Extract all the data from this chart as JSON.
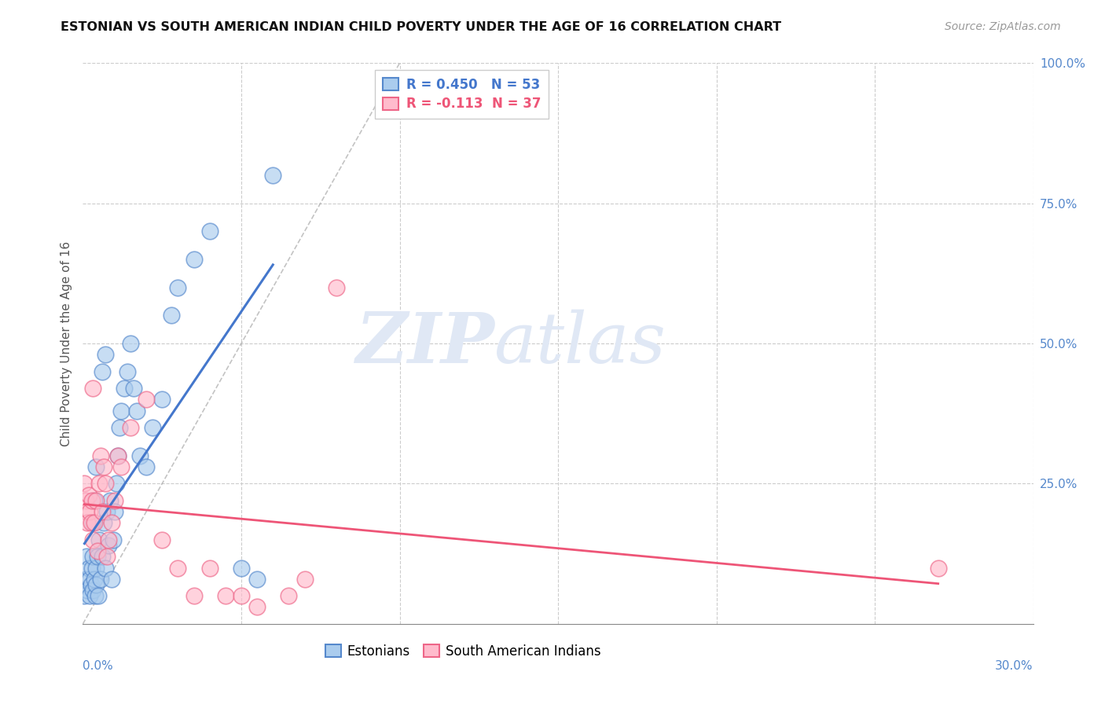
{
  "title": "ESTONIAN VS SOUTH AMERICAN INDIAN CHILD POVERTY UNDER THE AGE OF 16 CORRELATION CHART",
  "source": "Source: ZipAtlas.com",
  "ylabel": "Child Poverty Under the Age of 16",
  "color_estonian_face": "#aaccee",
  "color_estonian_edge": "#5588cc",
  "color_saindian_face": "#ffbbcc",
  "color_saindian_edge": "#ee6688",
  "color_line_estonian": "#4477cc",
  "color_line_saindian": "#ee5577",
  "color_ytick": "#5588cc",
  "watermark_zip": "ZIP",
  "watermark_atlas": "atlas",
  "legend_r1": "R = 0.450   N = 53",
  "legend_r2": "R = -0.113  N = 37",
  "xlim": [
    0.0,
    30.0
  ],
  "ylim": [
    0.0,
    100.0
  ],
  "estonian_x": [
    0.05,
    0.1,
    0.12,
    0.15,
    0.18,
    0.2,
    0.22,
    0.25,
    0.28,
    0.3,
    0.32,
    0.35,
    0.38,
    0.4,
    0.42,
    0.45,
    0.48,
    0.5,
    0.55,
    0.6,
    0.65,
    0.7,
    0.75,
    0.8,
    0.85,
    0.9,
    0.95,
    1.0,
    1.05,
    1.1,
    1.15,
    1.2,
    1.3,
    1.4,
    1.5,
    1.6,
    1.7,
    1.8,
    2.0,
    2.2,
    2.5,
    2.8,
    3.0,
    3.5,
    4.0,
    5.0,
    0.3,
    0.35,
    0.4,
    5.5,
    0.6,
    0.7,
    6.0
  ],
  "estonian_y": [
    5.0,
    8.0,
    12.0,
    6.0,
    10.0,
    8.0,
    5.0,
    7.0,
    10.0,
    12.0,
    6.0,
    8.0,
    5.0,
    10.0,
    7.0,
    12.0,
    5.0,
    15.0,
    8.0,
    12.0,
    18.0,
    10.0,
    20.0,
    14.0,
    22.0,
    8.0,
    15.0,
    20.0,
    25.0,
    30.0,
    35.0,
    38.0,
    42.0,
    45.0,
    50.0,
    42.0,
    38.0,
    30.0,
    28.0,
    35.0,
    40.0,
    55.0,
    60.0,
    65.0,
    70.0,
    10.0,
    18.0,
    22.0,
    28.0,
    8.0,
    45.0,
    48.0,
    80.0
  ],
  "saindian_x": [
    0.05,
    0.1,
    0.12,
    0.15,
    0.18,
    0.2,
    0.25,
    0.28,
    0.3,
    0.35,
    0.4,
    0.45,
    0.5,
    0.55,
    0.6,
    0.65,
    0.7,
    0.75,
    0.8,
    0.9,
    1.0,
    1.1,
    1.2,
    1.5,
    2.0,
    2.5,
    3.0,
    3.5,
    4.0,
    4.5,
    5.0,
    5.5,
    6.5,
    7.0,
    8.0,
    27.0,
    0.3
  ],
  "saindian_y": [
    25.0,
    22.0,
    20.0,
    18.0,
    23.0,
    20.0,
    18.0,
    22.0,
    15.0,
    18.0,
    22.0,
    13.0,
    25.0,
    30.0,
    20.0,
    28.0,
    25.0,
    12.0,
    15.0,
    18.0,
    22.0,
    30.0,
    28.0,
    35.0,
    40.0,
    15.0,
    10.0,
    5.0,
    10.0,
    5.0,
    5.0,
    3.0,
    5.0,
    8.0,
    60.0,
    10.0,
    42.0
  ]
}
